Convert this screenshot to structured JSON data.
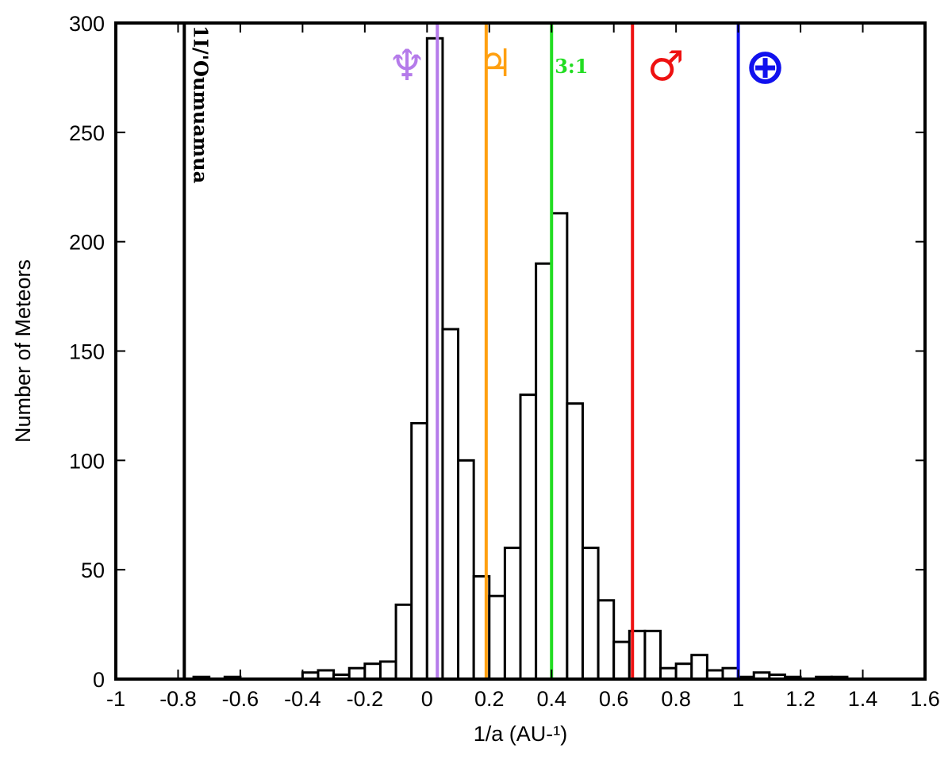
{
  "chart_data": {
    "type": "bar",
    "title": "",
    "xlabel": "1/a (AU-¹)",
    "ylabel": "Number of Meteors",
    "xlim": [
      -1,
      1.6
    ],
    "ylim": [
      0,
      300
    ],
    "x_ticks": [
      "-1",
      "-0.8",
      "-0.6",
      "-0.4",
      "-0.2",
      "0",
      "0.2",
      "0.4",
      "0.6",
      "0.8",
      "1",
      "1.2",
      "1.4",
      "1.6"
    ],
    "y_ticks": [
      "0",
      "50",
      "100",
      "150",
      "200",
      "250",
      "300"
    ],
    "grid": false,
    "bin_width": 0.05,
    "bins": [
      {
        "x0": -0.75,
        "value": 1
      },
      {
        "x0": -0.65,
        "value": 1
      },
      {
        "x0": -0.4,
        "value": 3
      },
      {
        "x0": -0.35,
        "value": 4
      },
      {
        "x0": -0.3,
        "value": 2
      },
      {
        "x0": -0.25,
        "value": 5
      },
      {
        "x0": -0.2,
        "value": 7
      },
      {
        "x0": -0.15,
        "value": 8
      },
      {
        "x0": -0.1,
        "value": 34
      },
      {
        "x0": -0.05,
        "value": 117
      },
      {
        "x0": 0.0,
        "value": 293
      },
      {
        "x0": 0.05,
        "value": 160
      },
      {
        "x0": 0.1,
        "value": 100
      },
      {
        "x0": 0.15,
        "value": 47
      },
      {
        "x0": 0.2,
        "value": 38
      },
      {
        "x0": 0.25,
        "value": 60
      },
      {
        "x0": 0.3,
        "value": 130
      },
      {
        "x0": 0.35,
        "value": 190
      },
      {
        "x0": 0.4,
        "value": 213
      },
      {
        "x0": 0.45,
        "value": 126
      },
      {
        "x0": 0.5,
        "value": 60
      },
      {
        "x0": 0.55,
        "value": 36
      },
      {
        "x0": 0.6,
        "value": 17
      },
      {
        "x0": 0.65,
        "value": 22
      },
      {
        "x0": 0.7,
        "value": 22
      },
      {
        "x0": 0.75,
        "value": 5
      },
      {
        "x0": 0.8,
        "value": 7
      },
      {
        "x0": 0.85,
        "value": 11
      },
      {
        "x0": 0.9,
        "value": 4
      },
      {
        "x0": 0.95,
        "value": 5
      },
      {
        "x0": 1.0,
        "value": 1
      },
      {
        "x0": 1.05,
        "value": 3
      },
      {
        "x0": 1.1,
        "value": 2
      },
      {
        "x0": 1.15,
        "value": 1
      },
      {
        "x0": 1.25,
        "value": 1
      },
      {
        "x0": 1.3,
        "value": 1
      }
    ],
    "reference_lines": [
      {
        "x": -0.78,
        "label": "1I/'Oumuamua",
        "color": "#000000"
      },
      {
        "x": 0.033,
        "label": "♆",
        "color": "#b57bea"
      },
      {
        "x": 0.19,
        "label": "♃",
        "color": "#ffa010"
      },
      {
        "x": 0.4,
        "label": "3:1",
        "color": "#22dd22"
      },
      {
        "x": 0.66,
        "label": "♂",
        "color": "#ee1111"
      },
      {
        "x": 1.0,
        "label": "⊕",
        "color": "#1111ee"
      }
    ]
  }
}
